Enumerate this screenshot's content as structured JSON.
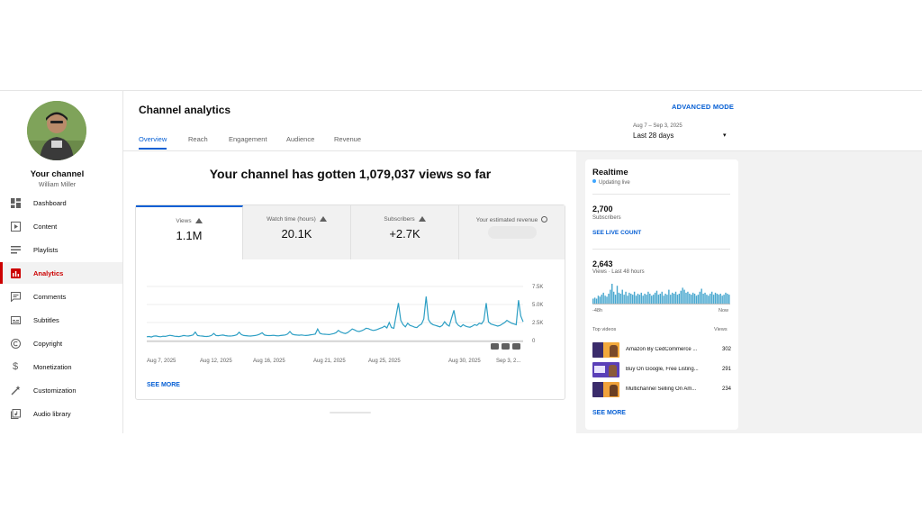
{
  "sidebar": {
    "channel_title": "Your channel",
    "channel_owner": "William Miller",
    "items": [
      {
        "label": "Dashboard",
        "icon": "dashboard-icon"
      },
      {
        "label": "Content",
        "icon": "content-icon"
      },
      {
        "label": "Playlists",
        "icon": "playlists-icon"
      },
      {
        "label": "Analytics",
        "icon": "analytics-icon",
        "active": true
      },
      {
        "label": "Comments",
        "icon": "comments-icon"
      },
      {
        "label": "Subtitles",
        "icon": "subtitles-icon"
      },
      {
        "label": "Copyright",
        "icon": "copyright-icon"
      },
      {
        "label": "Monetization",
        "icon": "monetization-icon"
      },
      {
        "label": "Customization",
        "icon": "customization-icon"
      },
      {
        "label": "Audio library",
        "icon": "audio-library-icon"
      }
    ]
  },
  "header": {
    "title": "Channel analytics",
    "advanced_mode": "ADVANCED MODE",
    "tabs": [
      "Overview",
      "Reach",
      "Engagement",
      "Audience",
      "Revenue"
    ],
    "active_tab": "Overview",
    "date_range": "Aug 7 – Sep 3, 2025",
    "date_preset": "Last 28 days"
  },
  "overview": {
    "headline": "Your channel has gotten 1,079,037 views so far",
    "metrics": [
      {
        "label": "Views",
        "value": "1.1M",
        "trend": "up"
      },
      {
        "label": "Watch time (hours)",
        "value": "20.1K",
        "trend": "up"
      },
      {
        "label": "Subscribers",
        "value": "+2.7K",
        "trend": "up"
      },
      {
        "label": "Your estimated revenue",
        "value": "",
        "icon": "info-icon"
      }
    ],
    "see_more": "SEE MORE"
  },
  "chart_data": {
    "type": "line",
    "series": [
      {
        "values": [
          520,
          560,
          490,
          610,
          640,
          560,
          530,
          600,
          580,
          650,
          720,
          680,
          600,
          580,
          550,
          610,
          700,
          650,
          620,
          690,
          760,
          1180,
          700,
          650,
          620,
          580,
          560,
          600,
          700,
          980,
          700,
          680,
          720,
          760,
          690,
          640,
          620,
          650,
          700,
          800,
          1150,
          820,
          700,
          680,
          640,
          620,
          660,
          700,
          780,
          900,
          1080,
          760,
          700,
          690,
          700,
          720,
          680,
          650,
          700,
          740,
          780,
          900,
          1250,
          880,
          800,
          760,
          740,
          780,
          720,
          700,
          740,
          800,
          840,
          900,
          1600,
          1000,
          900,
          880,
          850,
          820,
          900,
          960,
          1100,
          1400,
          1180,
          1050,
          980,
          1100,
          1350,
          1600,
          1480,
          1300,
          1250,
          1350,
          1500,
          1700,
          1650,
          1500,
          1400,
          1450,
          1550,
          1700,
          1800,
          2000,
          1750,
          2500,
          1800,
          1700,
          3500,
          5200,
          2800,
          2200,
          1900,
          2400,
          2100,
          2000,
          1850,
          1800,
          2100,
          2300,
          3000,
          6100,
          2900,
          2400,
          2200,
          2100,
          2000,
          1900,
          2100,
          2600,
          2200,
          2000,
          3100,
          4200,
          2500,
          2100,
          1900,
          2200,
          2000,
          1900,
          1850,
          2000,
          2200,
          2100,
          2400,
          2300,
          2800,
          5200,
          2600,
          2300,
          2200,
          2100,
          2000,
          2100,
          2300,
          2500,
          2800,
          2600,
          2400,
          2300,
          2200,
          5600,
          3400,
          2600
        ]
      }
    ],
    "x_ticks": [
      "Aug 7, 2025",
      "Aug 12, 2025",
      "Aug 16, 2025",
      "Aug 21, 2025",
      "Aug 25, 2025",
      "Aug 30, 2025",
      "Sep 3, 2..."
    ],
    "y_ticks": [
      "7.5K",
      "5.0K",
      "2.5K",
      "0"
    ],
    "ylim": [
      0,
      7500
    ],
    "grid": true
  },
  "realtime": {
    "title": "Realtime",
    "live": "Updating live",
    "subscribers_value": "2,700",
    "subscribers_label": "Subscribers",
    "see_live_count": "SEE LIVE COUNT",
    "views_value": "2,643",
    "views_label": "Views · Last 48 hours",
    "spark": [
      5,
      6,
      5,
      8,
      7,
      9,
      11,
      8,
      7,
      10,
      14,
      20,
      12,
      9,
      18,
      11,
      10,
      14,
      9,
      12,
      8,
      11,
      10,
      9,
      12,
      8,
      10,
      9,
      11,
      8,
      10,
      9,
      12,
      10,
      8,
      9,
      11,
      13,
      9,
      10,
      12,
      8,
      10,
      9,
      14,
      9,
      11,
      10,
      12,
      9,
      10,
      13,
      16,
      14,
      11,
      12,
      10,
      9,
      11,
      10,
      8,
      9,
      12,
      15,
      10,
      11,
      9,
      8,
      10,
      12,
      9,
      11,
      10,
      9,
      10,
      8,
      9,
      11,
      10,
      9
    ],
    "start_label": "-48h",
    "end_label": "Now",
    "top_videos_label": "Top videos",
    "views_col": "Views",
    "videos": [
      {
        "title": "Amazon By CedCommerce ...",
        "views": "302"
      },
      {
        "title": "Buy On Google, Free Listing...",
        "views": "291"
      },
      {
        "title": "Multichannel Selling On Am...",
        "views": "234"
      }
    ],
    "see_more": "SEE MORE"
  }
}
